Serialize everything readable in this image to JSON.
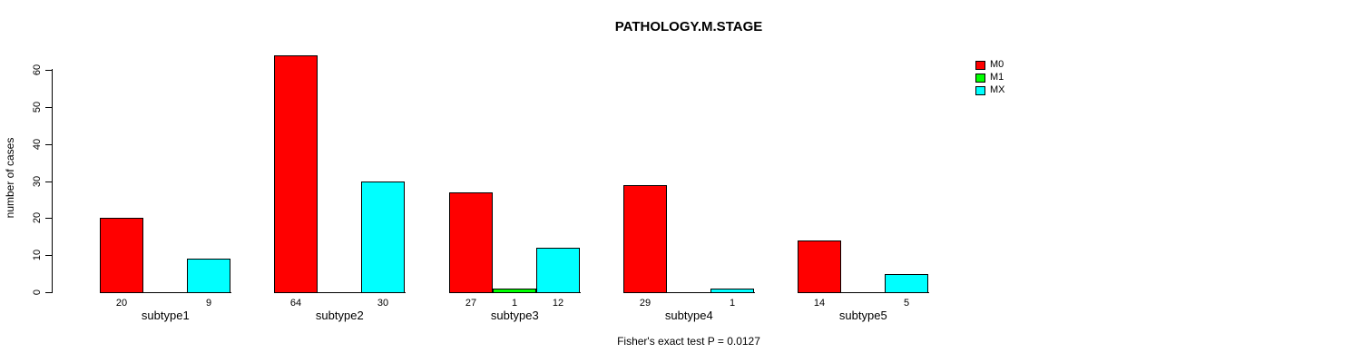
{
  "chart_data": {
    "type": "bar",
    "title": "PATHOLOGY.M.STAGE",
    "ylabel": "number of cases",
    "xlabel": "",
    "annotation": "Fisher's exact test P = 0.0127",
    "categories": [
      "subtype1",
      "subtype2",
      "subtype3",
      "subtype4",
      "subtype5"
    ],
    "series": [
      {
        "name": "M0",
        "color": "#ff0000",
        "values": [
          20,
          64,
          27,
          29,
          14
        ]
      },
      {
        "name": "M1",
        "color": "#00ff00",
        "values": [
          0,
          0,
          1,
          0,
          0
        ]
      },
      {
        "name": "MX",
        "color": "#00ffff",
        "values": [
          9,
          30,
          12,
          1,
          5
        ]
      }
    ],
    "bar_value_labels": [
      [
        "20",
        "",
        "9"
      ],
      [
        "64",
        "",
        "30"
      ],
      [
        "27",
        "1",
        "12"
      ],
      [
        "29",
        "",
        "1"
      ],
      [
        "14",
        "",
        "5"
      ]
    ],
    "yticks": [
      0,
      10,
      20,
      30,
      40,
      50,
      60
    ],
    "ylim": [
      0,
      64
    ],
    "grid": false,
    "legend": {
      "position": "top-right",
      "entries": [
        {
          "label": "M0",
          "color": "#ff0000"
        },
        {
          "label": "M1",
          "color": "#00ff00"
        },
        {
          "label": "MX",
          "color": "#00ffff"
        }
      ]
    },
    "colors": {
      "background": "#ffffff",
      "axis": "#000000",
      "text": "#000000"
    }
  }
}
